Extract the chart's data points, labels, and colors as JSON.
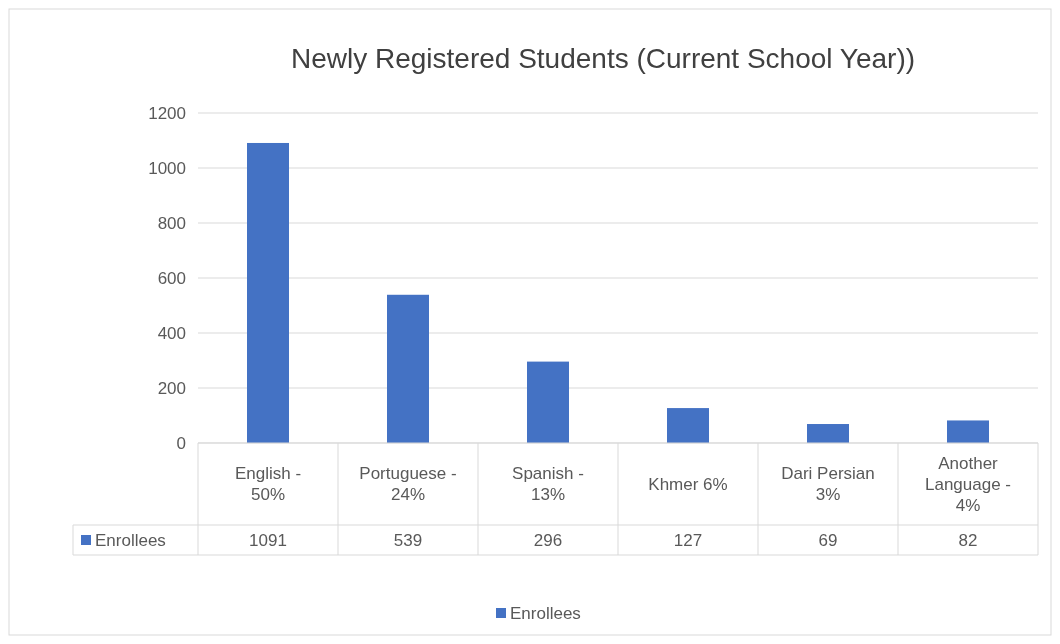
{
  "chart_data": {
    "type": "bar",
    "title": "Newly Registered Students (Current School Year))",
    "categories": [
      "English - 50%",
      "Portuguese - 24%",
      "Spanish - 13%",
      "Khmer 6%",
      "Dari Persian 3%",
      "Another Language - 4%"
    ],
    "series": [
      {
        "name": "Enrollees",
        "color": "#4472c4",
        "values": [
          1091,
          539,
          296,
          127,
          69,
          82
        ]
      }
    ],
    "ylim": [
      0,
      1200
    ],
    "yticks": [
      0,
      200,
      400,
      600,
      800,
      1000,
      1200
    ],
    "grid": "y",
    "legend": "bottom",
    "data_labels": true
  }
}
